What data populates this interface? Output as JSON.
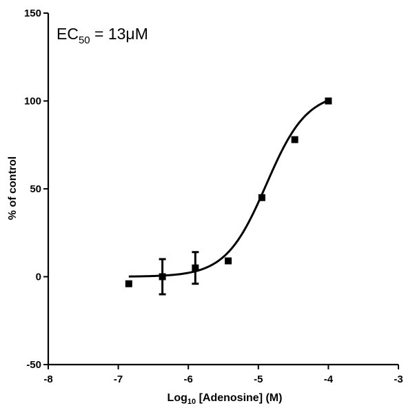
{
  "chart_data": {
    "type": "scatter",
    "xlabel_main": "Log",
    "xlabel_sub": "10",
    "xlabel_rest": " [Adenosine] (M)",
    "ylabel": "% of control",
    "xlim": [
      -8,
      -3
    ],
    "ylim": [
      -50,
      150
    ],
    "x_ticks": [
      -8,
      -7,
      -6,
      -5,
      -4,
      -3
    ],
    "y_ticks": [
      -50,
      0,
      50,
      100,
      150
    ],
    "x_tick_labels": [
      "-8",
      "-7",
      "-6",
      "-5",
      "-4",
      "-3"
    ],
    "y_tick_labels": [
      "-50",
      "0",
      "50",
      "100",
      "150"
    ],
    "annotation": {
      "main": "EC",
      "sub": "50",
      "rest": " = 13μM"
    },
    "points": [
      {
        "x": -6.85,
        "y": -4,
        "err": 0
      },
      {
        "x": -6.37,
        "y": 0,
        "err": 10
      },
      {
        "x": -5.9,
        "y": 5,
        "err": 9
      },
      {
        "x": -5.43,
        "y": 9,
        "err": 0
      },
      {
        "x": -4.95,
        "y": 45,
        "err": 0
      },
      {
        "x": -4.48,
        "y": 78,
        "err": 0
      },
      {
        "x": -4.0,
        "y": 100,
        "err": 0
      }
    ],
    "fit": {
      "model": "sigmoid",
      "bottom": 0,
      "top": 105,
      "log_ec50": -4.886,
      "hill": 1.5,
      "x_range": [
        -6.85,
        -4.0
      ]
    },
    "grid": false
  }
}
